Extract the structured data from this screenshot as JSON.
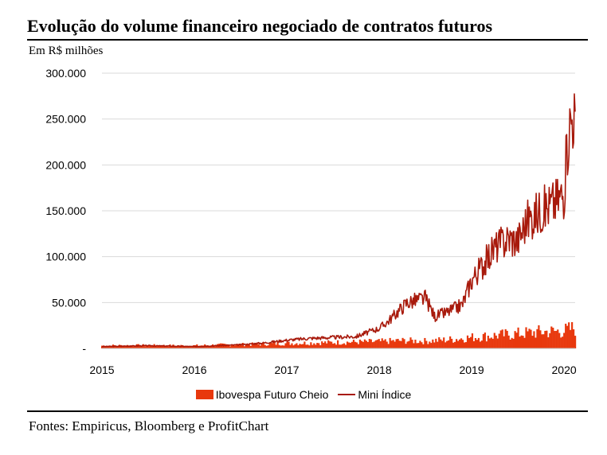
{
  "header": {
    "title": "Evolução do volume financeiro negociado de contratos futuros",
    "unit": "Em R$ milhões"
  },
  "footer": {
    "source": "Fontes: Empiricus, Bloomberg e ProfitChart"
  },
  "colors": {
    "bar": "#e8380d",
    "line": "#a81a0c",
    "grid": "#d9d9d9",
    "axis": "#bfbfbf"
  },
  "chart_data": {
    "type": "bar+line",
    "title": "Evolução do volume financeiro negociado de contratos futuros",
    "ylabel": "Em R$ milhões",
    "xlabel": "",
    "x_range": [
      2015,
      2020.12
    ],
    "ylim": [
      0,
      300000
    ],
    "y_ticks": [
      0,
      50000,
      100000,
      150000,
      200000,
      250000,
      300000
    ],
    "y_tick_labels": [
      "-",
      "50.000",
      "100.000",
      "150.000",
      "200.000",
      "250.000",
      "300.000"
    ],
    "x_ticks": [
      2015,
      2016,
      2017,
      2018,
      2019,
      2020
    ],
    "x_tick_labels": [
      "2015",
      "2016",
      "2017",
      "2018",
      "2019",
      "2020"
    ],
    "grid": true,
    "legend_position": "bottom",
    "series": [
      {
        "name": "Ibovespa Futuro Cheio",
        "kind": "bar",
        "x": [
          2015.0,
          2015.25,
          2015.5,
          2015.75,
          2016.0,
          2016.25,
          2016.5,
          2016.75,
          2017.0,
          2017.25,
          2017.5,
          2017.75,
          2018.0,
          2018.25,
          2018.5,
          2018.75,
          2019.0,
          2019.25,
          2019.5,
          2019.75,
          2020.0,
          2020.1
        ],
        "values": [
          3000,
          3200,
          3300,
          3100,
          3000,
          3800,
          4200,
          4800,
          5500,
          6000,
          6500,
          7000,
          7500,
          8500,
          8000,
          9500,
          12000,
          14000,
          16000,
          18000,
          19000,
          22000
        ]
      },
      {
        "name": "Mini Índice",
        "kind": "line",
        "x": [
          2015.0,
          2015.25,
          2015.5,
          2015.75,
          2016.0,
          2016.25,
          2016.5,
          2016.75,
          2017.0,
          2017.25,
          2017.5,
          2017.75,
          2018.0,
          2018.1,
          2018.3,
          2018.5,
          2018.6,
          2018.75,
          2018.9,
          2019.0,
          2019.15,
          2019.25,
          2019.4,
          2019.5,
          2019.6,
          2019.75,
          2019.9,
          2020.0,
          2020.05,
          2020.1
        ],
        "values": [
          2000,
          2500,
          3000,
          2500,
          2000,
          3000,
          4000,
          6000,
          9000,
          11000,
          12000,
          13000,
          22000,
          30000,
          50000,
          55000,
          35000,
          40000,
          48000,
          75000,
          95000,
          110000,
          120000,
          118000,
          140000,
          150000,
          160000,
          170000,
          240000,
          258000
        ]
      }
    ]
  }
}
